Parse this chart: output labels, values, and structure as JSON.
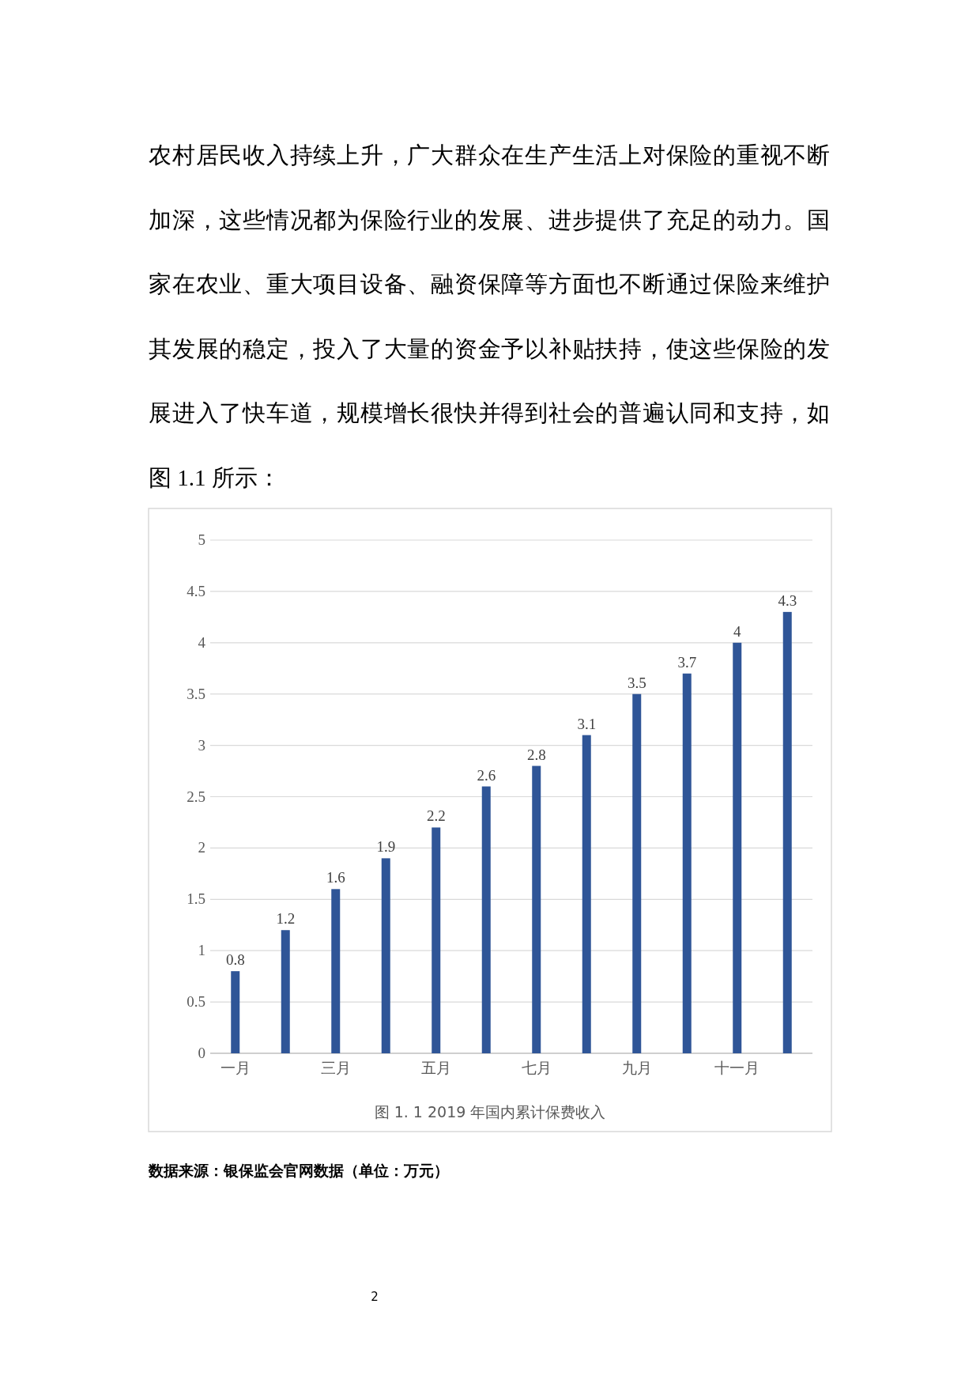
{
  "chart_data": {
    "type": "bar",
    "title": "图 1. 1  2019 年国内累计保费收入",
    "categories": [
      "一月",
      null,
      "三月",
      null,
      "五月",
      null,
      "七月",
      null,
      "九月",
      null,
      "十一月",
      null
    ],
    "values": [
      0.8,
      1.2,
      1.6,
      1.9,
      2.2,
      2.6,
      2.8,
      3.1,
      3.5,
      3.7,
      4,
      4.3
    ],
    "color": "#2f5597",
    "ylim": [
      0,
      5
    ],
    "yticks": [
      0,
      0.5,
      1,
      1.5,
      2,
      2.5,
      3,
      3.5,
      4,
      4.5,
      5
    ],
    "grid": "y",
    "data_labels": true,
    "annotations": [
      "农村居民收入持续上升，广大群众在生产生活上对保险的重视不断加深，这些情况都为保险行业的发展、进步提供了充足的动力。国家在农业、重大项目设备、融资保障等方面也不断通过保险来维护其发展的稳定，投入了大量的资金予以补贴扶持，使这些保险的发展进入了快车道，规模增长很快并得到社会的普遍认同和支持，如图 1.1 所示：",
      "数据来源：银保监会官网数据（单位：万元）",
      "2"
    ]
  }
}
